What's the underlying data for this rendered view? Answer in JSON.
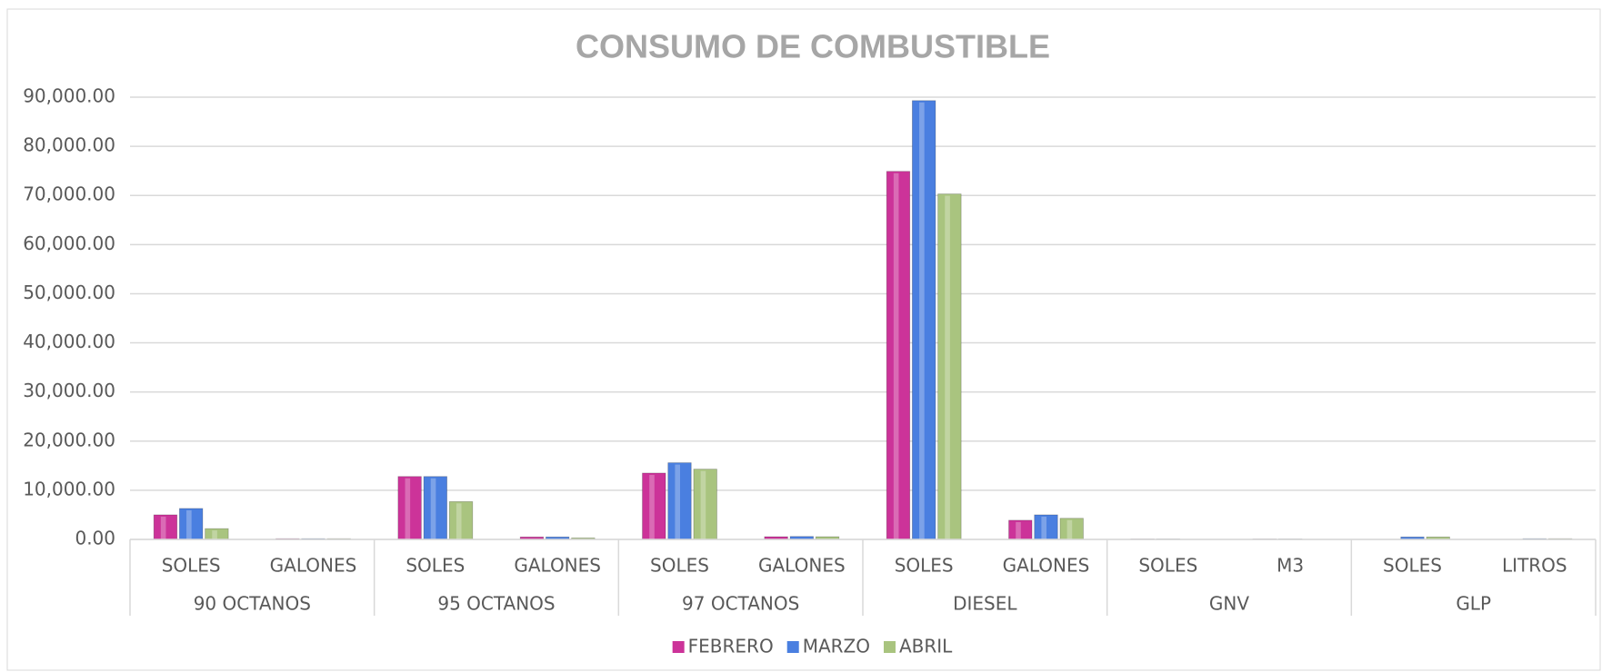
{
  "chart_data": {
    "type": "bar",
    "title": "CONSUMO DE COMBUSTIBLE",
    "categories": [
      "SOLES",
      "GALONES",
      "SOLES",
      "GALONES",
      "SOLES",
      "GALONES",
      "SOLES",
      "GALONES",
      "SOLES",
      "M3",
      "SOLES",
      "LITROS"
    ],
    "groups": [
      "90 OCTANOS",
      "95 OCTANOS",
      "97 OCTANOS",
      "DIESEL",
      "GNV",
      "GLP"
    ],
    "series": [
      {
        "name": "FEBRERO",
        "color": "#cc3399",
        "values": [
          5000,
          150,
          12800,
          500,
          13500,
          550,
          74900,
          3900,
          100,
          100,
          0,
          0
        ]
      },
      {
        "name": "MARZO",
        "color": "#4a7fe0",
        "values": [
          6300,
          150,
          12800,
          500,
          15600,
          600,
          89300,
          5000,
          100,
          100,
          500,
          150
        ]
      },
      {
        "name": "ABRIL",
        "color": "#a9c47f",
        "values": [
          2200,
          150,
          7700,
          300,
          14300,
          550,
          70300,
          4300,
          0,
          0,
          500,
          150
        ]
      }
    ],
    "ylim": [
      0,
      90000
    ],
    "yticks": [
      {
        "value": 0,
        "label": "0.00"
      },
      {
        "value": 10000,
        "label": "10,000.00"
      },
      {
        "value": 20000,
        "label": "20,000.00"
      },
      {
        "value": 30000,
        "label": "30,000.00"
      },
      {
        "value": 40000,
        "label": "40,000.00"
      },
      {
        "value": 50000,
        "label": "50,000.00"
      },
      {
        "value": 60000,
        "label": "60,000.00"
      },
      {
        "value": 70000,
        "label": "70,000.00"
      },
      {
        "value": 80000,
        "label": "80,000.00"
      },
      {
        "value": 90000,
        "label": "90,000.00"
      }
    ],
    "grid": true,
    "legend": "bottom"
  }
}
